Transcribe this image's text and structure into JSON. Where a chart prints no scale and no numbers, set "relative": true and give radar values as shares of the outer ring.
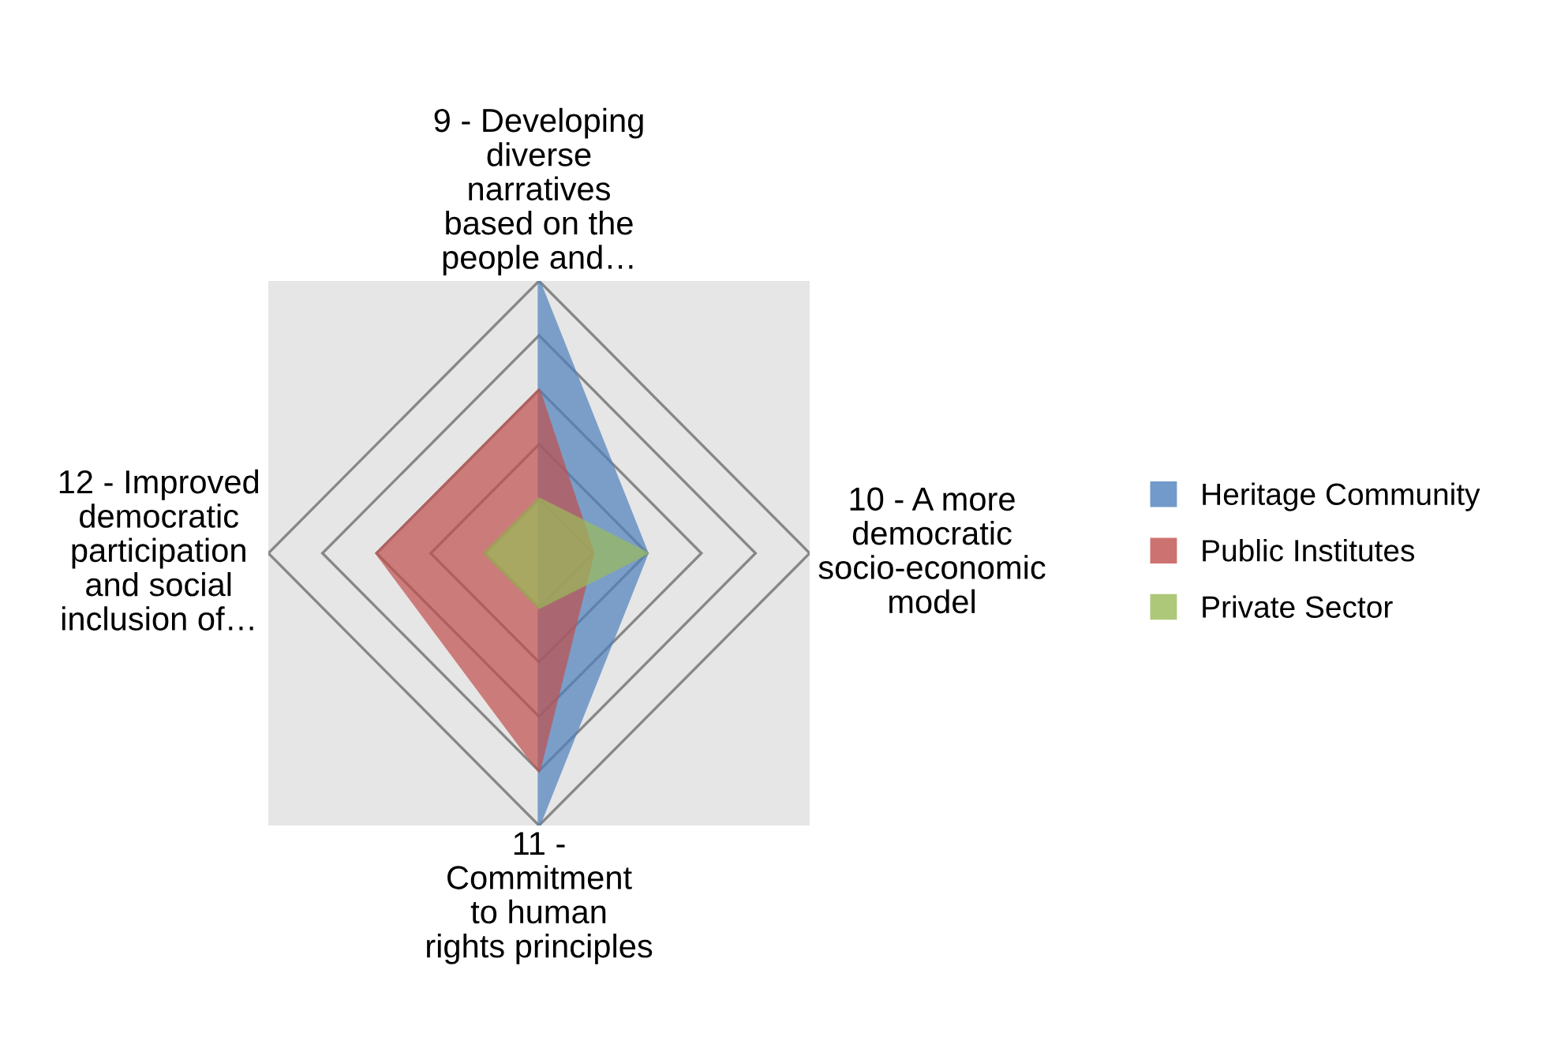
{
  "chart_data": {
    "type": "radar",
    "relative": true,
    "grid": true,
    "legend": "right",
    "categories": [
      "9 - Developing\ndiverse\nnarratives\nbased on the\npeople and…",
      "10 - A more\ndemocratic\nsocio-economic\nmodel",
      "11 -\nCommitment\nto human\nrights principles",
      "12 - Improved\ndemocratic\nparticipation\nand social\ninclusion of…"
    ],
    "series": [
      {
        "name": "Heritage Community",
        "color": "#4f81bd",
        "values": [
          1,
          0.4,
          1,
          0
        ]
      },
      {
        "name": "Public Institutes",
        "color": "#c0504d",
        "values": [
          0.6,
          0.2,
          0.8,
          0.6
        ]
      },
      {
        "name": "Private Sector",
        "color": "#9bbb59",
        "values": [
          0.2,
          0.4,
          0.2,
          0.2
        ]
      }
    ]
  }
}
